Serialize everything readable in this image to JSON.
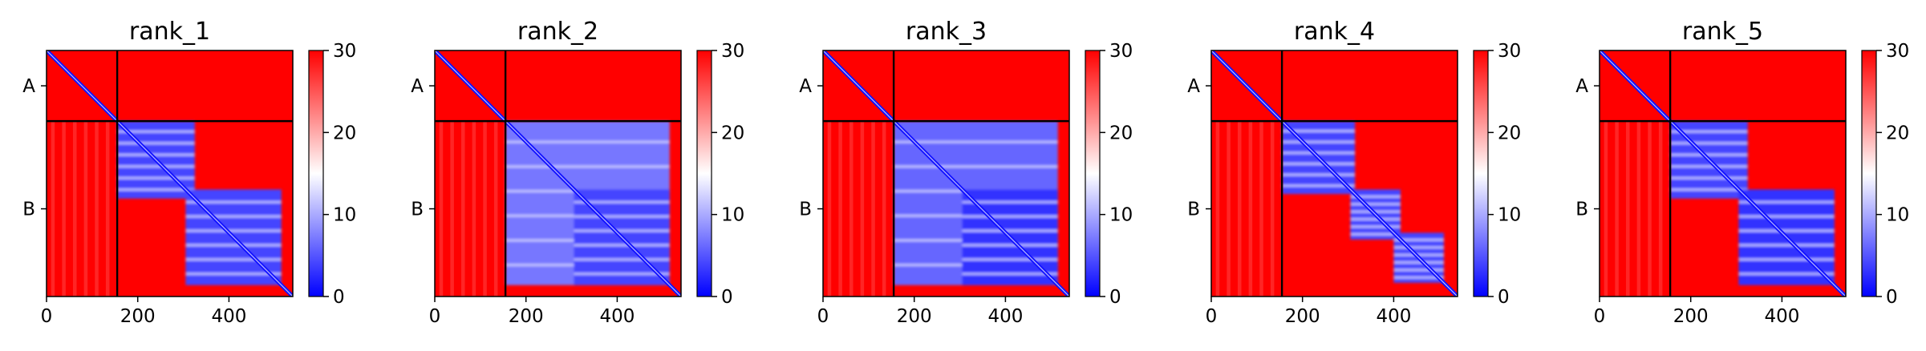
{
  "figure": {
    "description_type": "multi-panel heatmap"
  },
  "colorbar": {
    "ticks": [
      0,
      10,
      20,
      30
    ],
    "vmin": 0,
    "vmax": 30,
    "colormap": [
      "#0000ff",
      "#ffffff",
      "#ff0000"
    ]
  },
  "axes": {
    "x_ticks": [
      0,
      200,
      400
    ],
    "x_range": [
      0,
      540
    ],
    "y_ticks": [
      "A",
      "B"
    ],
    "chain_boundary": 155,
    "matrix_size": 540
  },
  "chart_data": [
    {
      "type": "heatmap",
      "title": "rank_1",
      "xlim": [
        0,
        540
      ],
      "ylim": [
        540,
        0
      ],
      "chains": [
        {
          "name": "A",
          "start": 0,
          "end": 155
        },
        {
          "name": "B",
          "start": 155,
          "end": 540
        }
      ],
      "low_error_blocks": [
        {
          "start": 155,
          "end": 325,
          "value": 4
        },
        {
          "start": 305,
          "end": 515,
          "value": 4
        }
      ],
      "diagonal_value": 1,
      "background_value": 30
    },
    {
      "type": "heatmap",
      "title": "rank_2",
      "xlim": [
        0,
        540
      ],
      "ylim": [
        540,
        0
      ],
      "chains": [
        {
          "name": "A",
          "start": 0,
          "end": 155
        },
        {
          "name": "B",
          "start": 155,
          "end": 540
        }
      ],
      "low_error_blocks": [
        {
          "start": 155,
          "end": 515,
          "value": 7
        },
        {
          "start": 305,
          "end": 515,
          "value": 4
        }
      ],
      "diagonal_value": 1,
      "background_value": 30
    },
    {
      "type": "heatmap",
      "title": "rank_3",
      "xlim": [
        0,
        540
      ],
      "ylim": [
        540,
        0
      ],
      "chains": [
        {
          "name": "A",
          "start": 0,
          "end": 155
        },
        {
          "name": "B",
          "start": 155,
          "end": 540
        }
      ],
      "low_error_blocks": [
        {
          "start": 155,
          "end": 515,
          "value": 6
        },
        {
          "start": 305,
          "end": 515,
          "value": 3
        }
      ],
      "diagonal_value": 1,
      "background_value": 30
    },
    {
      "type": "heatmap",
      "title": "rank_4",
      "xlim": [
        0,
        540
      ],
      "ylim": [
        540,
        0
      ],
      "chains": [
        {
          "name": "A",
          "start": 0,
          "end": 155
        },
        {
          "name": "B",
          "start": 155,
          "end": 540
        }
      ],
      "low_error_blocks": [
        {
          "start": 155,
          "end": 315,
          "value": 4
        },
        {
          "start": 305,
          "end": 415,
          "value": 4
        },
        {
          "start": 400,
          "end": 510,
          "value": 4
        }
      ],
      "diagonal_value": 1,
      "background_value": 30
    },
    {
      "type": "heatmap",
      "title": "rank_5",
      "xlim": [
        0,
        540
      ],
      "ylim": [
        540,
        0
      ],
      "chains": [
        {
          "name": "A",
          "start": 0,
          "end": 155
        },
        {
          "name": "B",
          "start": 155,
          "end": 540
        }
      ],
      "low_error_blocks": [
        {
          "start": 155,
          "end": 325,
          "value": 4
        },
        {
          "start": 305,
          "end": 515,
          "value": 3
        }
      ],
      "diagonal_value": 1,
      "background_value": 30
    }
  ]
}
